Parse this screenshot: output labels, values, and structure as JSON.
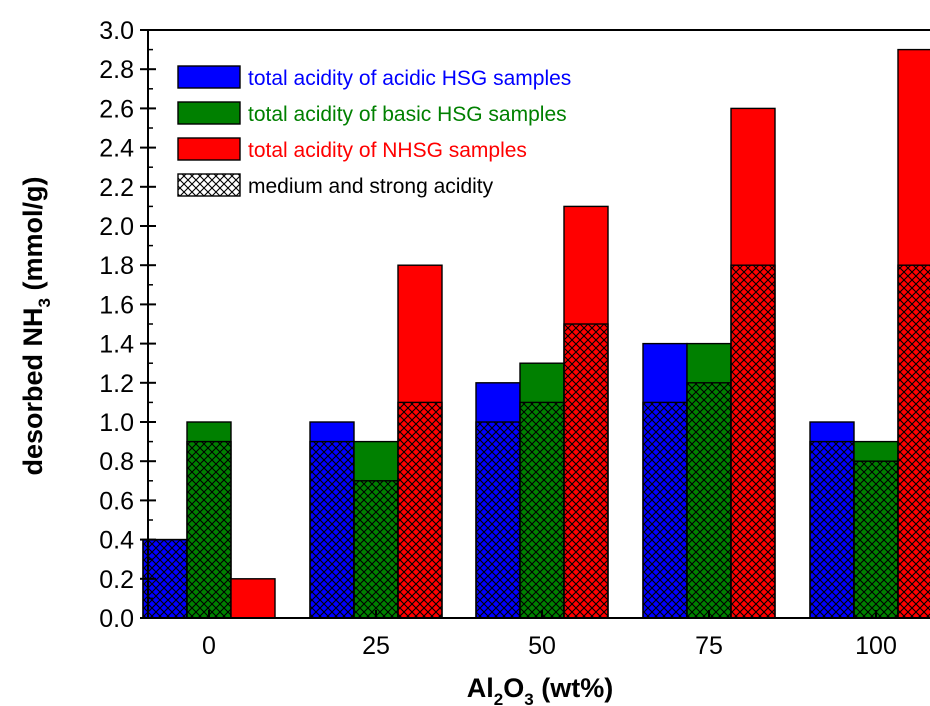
{
  "chart_data": {
    "type": "bar",
    "subtype": "overlapping-grouped-bar",
    "xlabel": {
      "main": "Al",
      "sub1": "2",
      "mid": "O",
      "sub2": "3",
      "tail": " (wt%)"
    },
    "ylabel": {
      "main": "desorbed NH",
      "sub": "3",
      "tail": " (mmol/g)"
    },
    "ylim": [
      0.0,
      3.0
    ],
    "yticks": [
      "0.0",
      "0.2",
      "0.4",
      "0.6",
      "0.8",
      "1.0",
      "1.2",
      "1.4",
      "1.6",
      "1.8",
      "2.0",
      "2.2",
      "2.4",
      "2.6",
      "2.8",
      "3.0"
    ],
    "categories": [
      "0",
      "25",
      "50",
      "75",
      "100"
    ],
    "grid": false,
    "legend_position": "top-left",
    "series": [
      {
        "name": "total acidity of acidic HSG samples",
        "color": "#0000ff",
        "total": [
          0.4,
          1.0,
          1.2,
          1.4,
          1.0
        ],
        "medium_strong": [
          0.4,
          0.9,
          1.0,
          1.1,
          0.9
        ]
      },
      {
        "name": "total acidity of basic HSG samples",
        "color": "#008000",
        "total": [
          1.0,
          0.9,
          1.3,
          1.4,
          0.9
        ],
        "medium_strong": [
          0.9,
          0.7,
          1.1,
          1.2,
          0.8
        ]
      },
      {
        "name": "total acidity of NHSG samples",
        "color": "#ff0000",
        "total": [
          0.2,
          1.8,
          2.1,
          2.6,
          2.9
        ],
        "medium_strong": [
          0.0,
          1.1,
          1.5,
          1.8,
          1.8
        ]
      }
    ],
    "hatch_legend": "medium and strong acidity"
  }
}
